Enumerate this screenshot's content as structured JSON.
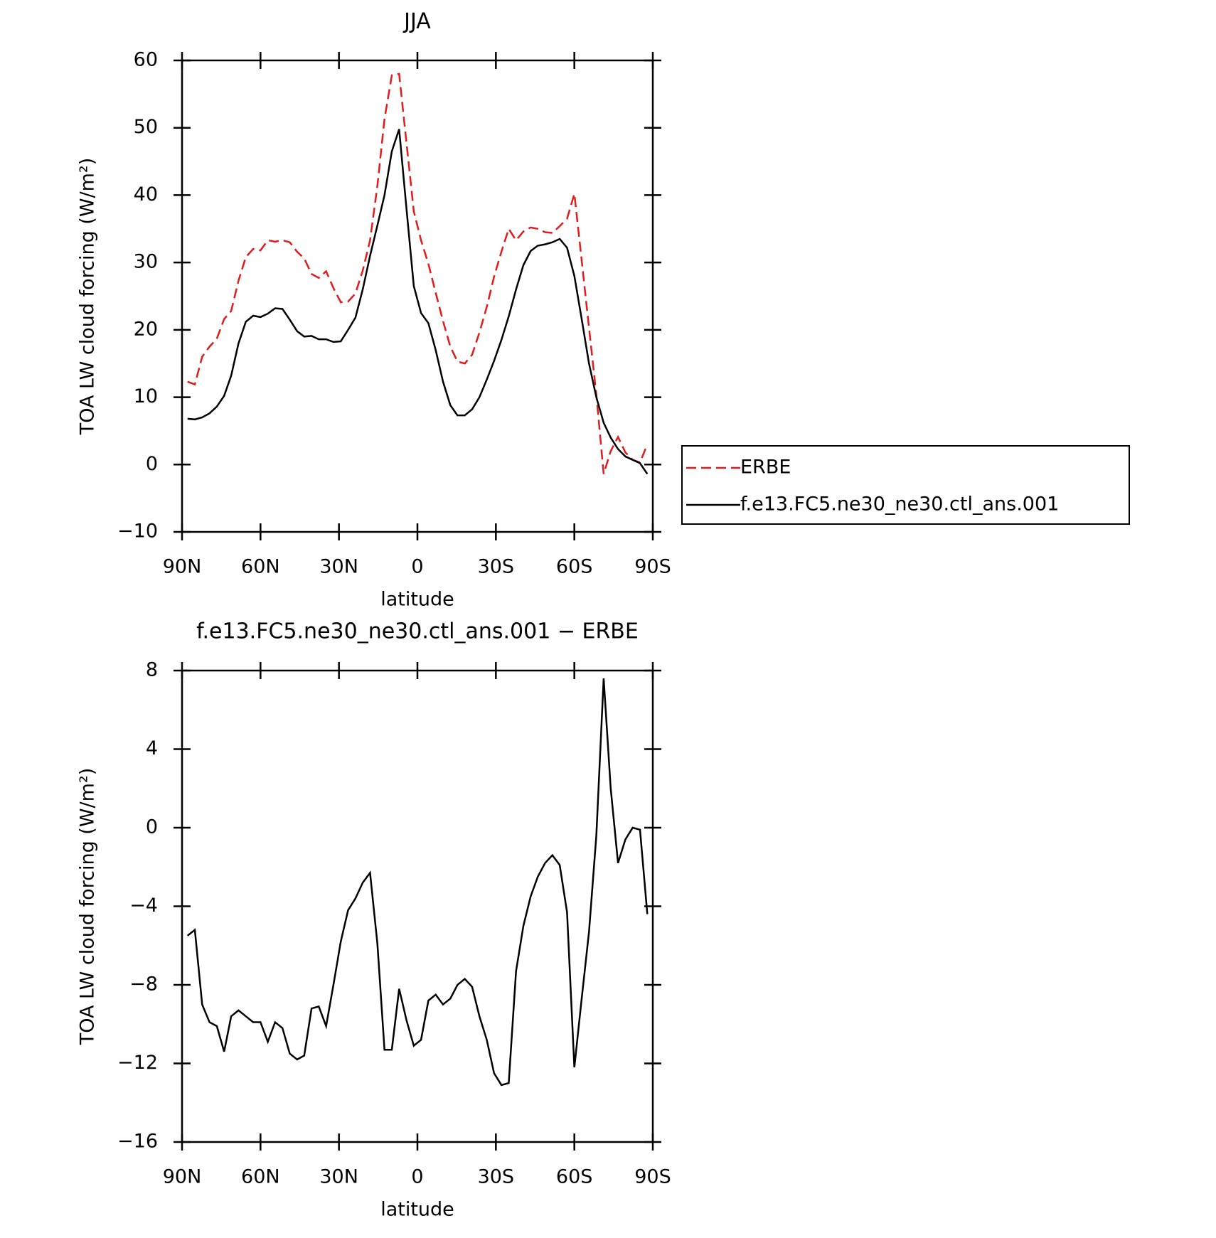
{
  "chart_data": [
    {
      "type": "line",
      "title": "JJA",
      "xlabel": "latitude",
      "ylabel": "TOA LW cloud forcing (W/m²)",
      "x": [
        87.9,
        85.1,
        82.3,
        79.5,
        76.7,
        73.9,
        71.2,
        68.4,
        65.6,
        62.8,
        60.0,
        57.2,
        54.4,
        51.6,
        48.8,
        46.0,
        43.3,
        40.5,
        37.7,
        34.9,
        32.1,
        29.3,
        26.5,
        23.7,
        20.9,
        18.1,
        15.3,
        12.6,
        9.8,
        7.0,
        4.2,
        1.4,
        -1.4,
        -4.2,
        -7.0,
        -9.8,
        -12.6,
        -15.3,
        -18.1,
        -20.9,
        -23.7,
        -26.5,
        -29.3,
        -32.1,
        -34.9,
        -37.7,
        -40.5,
        -43.3,
        -46.0,
        -48.8,
        -51.6,
        -54.4,
        -57.2,
        -60.0,
        -62.8,
        -65.6,
        -68.4,
        -71.2,
        -73.9,
        -76.7,
        -79.5,
        -82.3,
        -85.1,
        -87.9
      ],
      "series": [
        {
          "name": "ERBE",
          "color": "#e41a1c",
          "linestyle": "dashed",
          "values": [
            12.3,
            11.9,
            16.0,
            17.5,
            18.7,
            21.6,
            22.8,
            27.3,
            30.8,
            32.0,
            31.8,
            33.3,
            33.1,
            33.3,
            33.0,
            31.6,
            30.6,
            28.3,
            27.7,
            28.7,
            26.2,
            24.1,
            24.2,
            25.4,
            28.8,
            33.3,
            41.4,
            51.3,
            57.8,
            58.0,
            47.8,
            37.6,
            33.3,
            29.8,
            25.5,
            21.3,
            17.5,
            15.3,
            15.0,
            16.3,
            19.6,
            23.4,
            27.9,
            31.6,
            35.0,
            33.3,
            34.6,
            35.2,
            35.0,
            34.5,
            34.4,
            35.4,
            36.5,
            40.2,
            30.3,
            20.3,
            10.4,
            -1.4,
            2.0,
            4.1,
            1.8,
            0.7,
            0.3,
            3.0
          ]
        },
        {
          "name": "f.e13.FC5.ne30_ne30.ctl_ans.001",
          "color": "#000000",
          "linestyle": "solid",
          "values": [
            6.8,
            6.7,
            7.0,
            7.6,
            8.6,
            10.2,
            13.2,
            18.0,
            21.2,
            22.1,
            21.9,
            22.4,
            23.2,
            23.1,
            21.5,
            19.8,
            19.0,
            19.1,
            18.6,
            18.6,
            18.2,
            18.3,
            20.0,
            21.8,
            26.0,
            31.0,
            35.5,
            40.0,
            46.5,
            49.8,
            38.0,
            26.5,
            22.5,
            21.0,
            17.0,
            12.3,
            8.8,
            7.3,
            7.3,
            8.2,
            10.0,
            12.6,
            15.4,
            18.5,
            22.0,
            26.0,
            29.6,
            31.7,
            32.5,
            32.7,
            33.0,
            33.5,
            32.2,
            28.0,
            21.6,
            15.0,
            10.0,
            6.2,
            4.0,
            2.3,
            1.2,
            0.7,
            0.2,
            -1.4
          ]
        }
      ],
      "xlim": [
        90,
        -90
      ],
      "xticks": [
        {
          "value": 90,
          "label": "90N"
        },
        {
          "value": 60,
          "label": "60N"
        },
        {
          "value": 30,
          "label": "30N"
        },
        0,
        {
          "value": -30,
          "label": "30S"
        },
        {
          "value": -60,
          "label": "60S"
        },
        {
          "value": -90,
          "label": "90S"
        }
      ],
      "ylim": [
        -10,
        60
      ],
      "yticks": [
        {
          "value": -10,
          "label": "−10"
        },
        0,
        10,
        20,
        30,
        40,
        50,
        60
      ],
      "legend": "right"
    },
    {
      "type": "line",
      "title": "f.e13.FC5.ne30_ne30.ctl_ans.001 − ERBE",
      "xlabel": "latitude",
      "ylabel": "TOA LW cloud forcing (W/m²)",
      "x": [
        87.9,
        85.1,
        82.3,
        79.5,
        76.7,
        73.9,
        71.2,
        68.4,
        65.6,
        62.8,
        60.0,
        57.2,
        54.4,
        51.6,
        48.8,
        46.0,
        43.3,
        40.5,
        37.7,
        34.9,
        32.1,
        29.3,
        26.5,
        23.7,
        20.9,
        18.1,
        15.3,
        12.6,
        9.8,
        7.0,
        4.2,
        1.4,
        -1.4,
        -4.2,
        -7.0,
        -9.8,
        -12.6,
        -15.3,
        -18.1,
        -20.9,
        -23.7,
        -26.5,
        -29.3,
        -32.1,
        -34.9,
        -37.7,
        -40.5,
        -43.3,
        -46.0,
        -48.8,
        -51.6,
        -54.4,
        -57.2,
        -60.0,
        -62.8,
        -65.6,
        -68.4,
        -71.2,
        -73.9,
        -76.7,
        -79.5,
        -82.3,
        -85.1,
        -87.9
      ],
      "series": [
        {
          "color": "#000000",
          "linestyle": "solid",
          "values": [
            -5.5,
            -5.2,
            -9.0,
            -9.9,
            -10.1,
            -11.4,
            -9.6,
            -9.3,
            -9.6,
            -9.9,
            -9.9,
            -10.9,
            -9.9,
            -10.2,
            -11.5,
            -11.8,
            -11.6,
            -9.2,
            -9.1,
            -10.1,
            -8.0,
            -5.8,
            -4.2,
            -3.6,
            -2.8,
            -2.3,
            -5.9,
            -11.3,
            -11.3,
            -8.2,
            -9.8,
            -11.1,
            -10.8,
            -8.8,
            -8.5,
            -9.0,
            -8.7,
            -8.0,
            -7.7,
            -8.1,
            -9.6,
            -10.8,
            -12.5,
            -13.1,
            -13.0,
            -7.3,
            -5.0,
            -3.5,
            -2.5,
            -1.8,
            -1.4,
            -1.9,
            -4.3,
            -12.2,
            -8.7,
            -5.3,
            -0.4,
            7.6,
            2.0,
            -1.8,
            -0.6,
            0.0,
            -0.1,
            -4.4
          ]
        }
      ],
      "xlim": [
        90,
        -90
      ],
      "xticks": [
        {
          "value": 90,
          "label": "90N"
        },
        {
          "value": 60,
          "label": "60N"
        },
        {
          "value": 30,
          "label": "30N"
        },
        0,
        {
          "value": -30,
          "label": "30S"
        },
        {
          "value": -60,
          "label": "60S"
        },
        {
          "value": -90,
          "label": "90S"
        }
      ],
      "ylim": [
        -16,
        8
      ],
      "yticks": [
        {
          "value": -16,
          "label": "−16"
        },
        {
          "value": -12,
          "label": "−12"
        },
        {
          "value": -8,
          "label": "−8"
        },
        {
          "value": -4,
          "label": "−4"
        },
        0,
        4,
        8
      ]
    }
  ]
}
